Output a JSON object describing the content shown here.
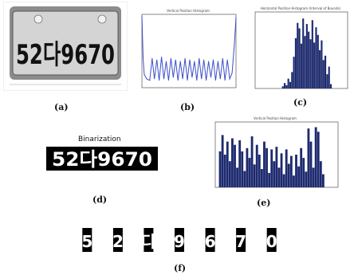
{
  "figure": {
    "captions": {
      "a": "(a)",
      "b": "(b)",
      "c": "(c)",
      "d": "(d)",
      "e": "(e)",
      "f": "(f)"
    },
    "plate_text": "52다9670",
    "binarization_title": "Binarization",
    "binary_text": "52다9670",
    "segmented_chars": [
      "5",
      "2",
      "다",
      "9",
      "6",
      "7",
      "0"
    ],
    "plot_b_title": "Vertical Position Histogram",
    "plot_c_title": "Horizontal Position Histogram (Interval of Bounds)",
    "plot_e_title": "Vertical Position Histogram"
  },
  "chart_data": [
    {
      "type": "line",
      "panel": "b",
      "title": "Vertical Position Histogram",
      "xlim": [
        0,
        240
      ],
      "ylim": [
        0,
        100
      ],
      "x": [
        0,
        3,
        6,
        12,
        20,
        26,
        32,
        38,
        44,
        50,
        56,
        62,
        68,
        74,
        80,
        86,
        92,
        98,
        104,
        110,
        116,
        122,
        128,
        134,
        140,
        146,
        152,
        158,
        164,
        170,
        176,
        182,
        188,
        194,
        200,
        206,
        212,
        218,
        224,
        230,
        236,
        240
      ],
      "y": [
        98,
        40,
        18,
        12,
        10,
        40,
        12,
        38,
        10,
        42,
        12,
        36,
        10,
        40,
        14,
        38,
        10,
        36,
        12,
        40,
        10,
        38,
        14,
        36,
        10,
        40,
        12,
        38,
        10,
        36,
        14,
        38,
        10,
        36,
        12,
        40,
        10,
        38,
        12,
        20,
        60,
        96
      ],
      "color": "#3b4fc9"
    },
    {
      "type": "bar",
      "panel": "c",
      "title": "Horizontal Position Histogram (Interval of Bounds)",
      "xlim": [
        0,
        200
      ],
      "ylim": [
        0,
        140
      ],
      "x": [
        60,
        64,
        68,
        72,
        76,
        80,
        84,
        88,
        92,
        96,
        100,
        104,
        108,
        112,
        116,
        120,
        124,
        128,
        132,
        136,
        140,
        144,
        148,
        152,
        156,
        160,
        164
      ],
      "values": [
        4,
        10,
        6,
        18,
        12,
        30,
        58,
        92,
        120,
        110,
        82,
        128,
        96,
        118,
        104,
        90,
        125,
        84,
        112,
        98,
        70,
        88,
        52,
        60,
        26,
        40,
        8
      ],
      "color": "#1d2a6e"
    },
    {
      "type": "bar",
      "panel": "e",
      "title": "Vertical Position Histogram",
      "xlim": [
        0,
        250
      ],
      "ylim": [
        0,
        100
      ],
      "x": [
        10,
        15,
        20,
        25,
        30,
        35,
        40,
        45,
        50,
        55,
        60,
        65,
        70,
        75,
        80,
        85,
        90,
        95,
        100,
        105,
        110,
        115,
        120,
        125,
        130,
        135,
        140,
        145,
        150,
        155,
        160,
        165,
        170,
        175,
        180,
        185,
        190,
        195,
        200,
        205,
        210,
        215,
        220
      ],
      "values": [
        55,
        80,
        50,
        70,
        40,
        75,
        65,
        30,
        72,
        55,
        25,
        60,
        45,
        78,
        35,
        65,
        50,
        28,
        70,
        60,
        22,
        58,
        40,
        62,
        30,
        52,
        20,
        58,
        36,
        48,
        18,
        50,
        32,
        60,
        45,
        24,
        90,
        70,
        30,
        92,
        85,
        40,
        20
      ],
      "color": "#1d2a6e"
    }
  ]
}
